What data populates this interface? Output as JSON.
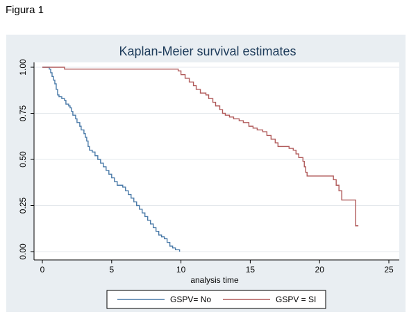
{
  "figure_label": "Figura 1",
  "chart_data": {
    "type": "line",
    "step": true,
    "title": "Kaplan-Meier survival estimates",
    "xlabel": "analysis time",
    "ylabel": "",
    "xlim": [
      0,
      25
    ],
    "ylim": [
      0,
      1
    ],
    "x_ticks": [
      0,
      5,
      10,
      15,
      20,
      25
    ],
    "x_tick_labels": [
      "0",
      "5",
      "10",
      "15",
      "20",
      "25"
    ],
    "y_ticks": [
      0,
      0.25,
      0.5,
      0.75,
      1.0
    ],
    "y_tick_labels": [
      "0.00",
      "0.25",
      "0.50",
      "0.75",
      "1.00"
    ],
    "grid": true,
    "legend_position": "bottom",
    "series": [
      {
        "name": "GSPV= No",
        "color": "#4a7aa8",
        "points": [
          [
            0,
            1.0
          ],
          [
            0.5,
            0.99
          ],
          [
            0.6,
            0.97
          ],
          [
            0.7,
            0.95
          ],
          [
            0.8,
            0.93
          ],
          [
            0.9,
            0.91
          ],
          [
            1.0,
            0.88
          ],
          [
            1.1,
            0.85
          ],
          [
            1.2,
            0.84
          ],
          [
            1.4,
            0.83
          ],
          [
            1.6,
            0.82
          ],
          [
            1.7,
            0.8
          ],
          [
            1.9,
            0.79
          ],
          [
            2.0,
            0.78
          ],
          [
            2.1,
            0.76
          ],
          [
            2.2,
            0.74
          ],
          [
            2.4,
            0.72
          ],
          [
            2.5,
            0.7
          ],
          [
            2.7,
            0.68
          ],
          [
            2.8,
            0.66
          ],
          [
            3.0,
            0.64
          ],
          [
            3.1,
            0.62
          ],
          [
            3.2,
            0.6
          ],
          [
            3.3,
            0.57
          ],
          [
            3.4,
            0.55
          ],
          [
            3.6,
            0.54
          ],
          [
            3.8,
            0.52
          ],
          [
            4.0,
            0.5
          ],
          [
            4.2,
            0.48
          ],
          [
            4.4,
            0.46
          ],
          [
            4.6,
            0.44
          ],
          [
            4.8,
            0.42
          ],
          [
            5.0,
            0.4
          ],
          [
            5.2,
            0.38
          ],
          [
            5.4,
            0.36
          ],
          [
            5.8,
            0.35
          ],
          [
            6.0,
            0.33
          ],
          [
            6.2,
            0.31
          ],
          [
            6.4,
            0.29
          ],
          [
            6.6,
            0.27
          ],
          [
            6.8,
            0.25
          ],
          [
            7.0,
            0.23
          ],
          [
            7.2,
            0.21
          ],
          [
            7.4,
            0.19
          ],
          [
            7.6,
            0.17
          ],
          [
            7.8,
            0.15
          ],
          [
            8.0,
            0.13
          ],
          [
            8.2,
            0.11
          ],
          [
            8.4,
            0.09
          ],
          [
            8.6,
            0.08
          ],
          [
            8.8,
            0.07
          ],
          [
            9.0,
            0.05
          ],
          [
            9.2,
            0.03
          ],
          [
            9.4,
            0.02
          ],
          [
            9.6,
            0.01
          ],
          [
            9.8,
            0.01
          ],
          [
            9.9,
            0.0
          ]
        ]
      },
      {
        "name": "GSPV = SI",
        "color": "#b05a5a",
        "points": [
          [
            0,
            1.0
          ],
          [
            1.6,
            0.99
          ],
          [
            9.5,
            0.99
          ],
          [
            9.8,
            0.98
          ],
          [
            10.0,
            0.96
          ],
          [
            10.3,
            0.94
          ],
          [
            10.6,
            0.92
          ],
          [
            10.9,
            0.9
          ],
          [
            11.1,
            0.88
          ],
          [
            11.4,
            0.86
          ],
          [
            11.8,
            0.85
          ],
          [
            12.0,
            0.83
          ],
          [
            12.3,
            0.81
          ],
          [
            12.5,
            0.79
          ],
          [
            12.8,
            0.77
          ],
          [
            13.0,
            0.75
          ],
          [
            13.2,
            0.74
          ],
          [
            13.5,
            0.73
          ],
          [
            13.8,
            0.72
          ],
          [
            14.2,
            0.71
          ],
          [
            14.5,
            0.7
          ],
          [
            14.9,
            0.68
          ],
          [
            15.2,
            0.67
          ],
          [
            15.5,
            0.66
          ],
          [
            15.9,
            0.65
          ],
          [
            16.2,
            0.63
          ],
          [
            16.5,
            0.61
          ],
          [
            16.8,
            0.59
          ],
          [
            17.0,
            0.57
          ],
          [
            17.8,
            0.56
          ],
          [
            18.1,
            0.55
          ],
          [
            18.3,
            0.53
          ],
          [
            18.5,
            0.51
          ],
          [
            18.8,
            0.49
          ],
          [
            18.9,
            0.46
          ],
          [
            19.0,
            0.43
          ],
          [
            19.1,
            0.41
          ],
          [
            21.0,
            0.39
          ],
          [
            21.2,
            0.36
          ],
          [
            21.4,
            0.33
          ],
          [
            21.6,
            0.28
          ],
          [
            22.6,
            0.14
          ],
          [
            22.8,
            0.14
          ]
        ]
      }
    ]
  }
}
